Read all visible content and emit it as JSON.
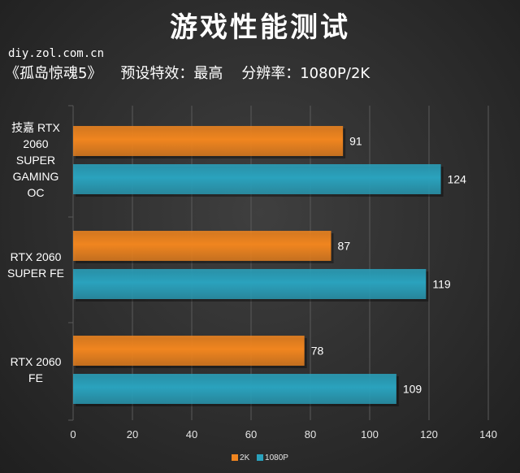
{
  "title": "游戏性能测试",
  "source": "diy.zol.com.cn",
  "subtitle": "《孤岛惊魂5》    预设特效：最高    分辨率：1080P/2K",
  "colors": {
    "2K": "#f0851f",
    "1080P": "#2aa2bd"
  },
  "chart_data": {
    "type": "bar",
    "orientation": "horizontal",
    "categories": [
      "技嘉 RTX 2060 SUPER GAMING OC",
      "RTX 2060 SUPER FE",
      "RTX 2060 FE"
    ],
    "category_lines": [
      [
        "技嘉 RTX",
        "2060",
        "SUPER",
        "GAMING",
        "OC"
      ],
      [
        "RTX 2060",
        "SUPER FE"
      ],
      [
        "RTX 2060",
        "FE"
      ]
    ],
    "series": [
      {
        "name": "2K",
        "values": [
          91,
          87,
          78
        ]
      },
      {
        "name": "1080P",
        "values": [
          124,
          119,
          109
        ]
      }
    ],
    "xlim": [
      0,
      140
    ],
    "xticks": [
      0,
      20,
      40,
      60,
      80,
      100,
      120,
      140
    ],
    "grid": true,
    "data_labels": true,
    "legend_position": "bottom"
  }
}
